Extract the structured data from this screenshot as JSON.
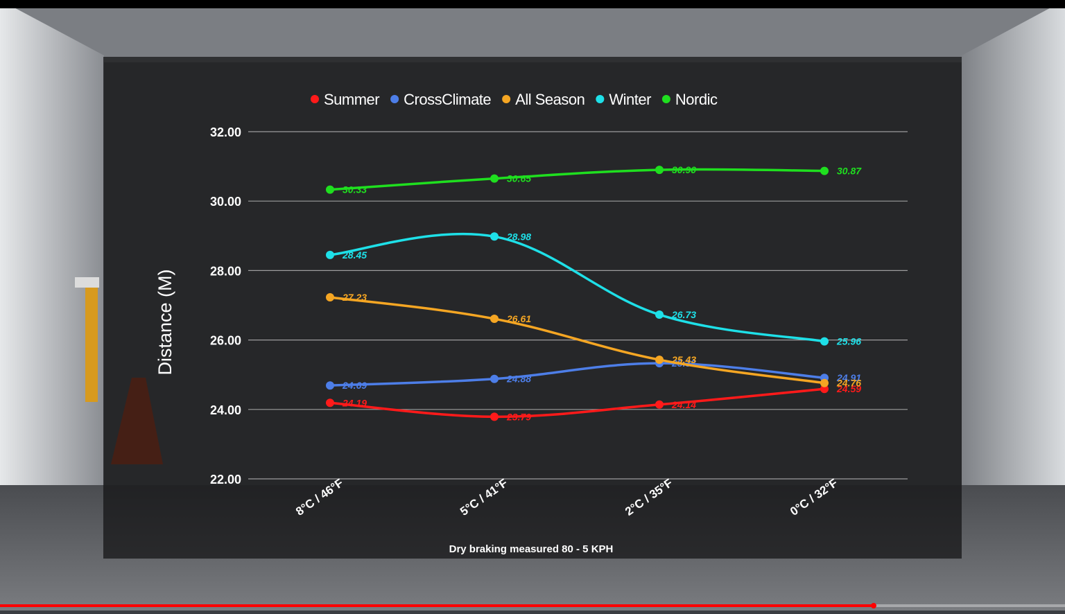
{
  "player": {
    "progress": 0.82
  },
  "chart_data": {
    "type": "line",
    "categories": [
      "8°C / 46°F",
      "5°C / 41°F",
      "2°C / 35°F",
      "0°C / 32°F"
    ],
    "series": [
      {
        "name": "Summer",
        "color": "#ff1a1a",
        "values": [
          24.19,
          23.79,
          24.14,
          24.59
        ]
      },
      {
        "name": "CrossClimate",
        "color": "#4d7ee8",
        "values": [
          24.69,
          24.88,
          25.33,
          24.91
        ]
      },
      {
        "name": "All Season",
        "color": "#f5a623",
        "values": [
          27.23,
          26.61,
          25.43,
          24.76
        ]
      },
      {
        "name": "Winter",
        "color": "#1ee0e8",
        "values": [
          28.45,
          28.98,
          26.73,
          25.96
        ]
      },
      {
        "name": "Nordic",
        "color": "#1fdf1f",
        "values": [
          30.33,
          30.65,
          30.9,
          30.87
        ]
      }
    ],
    "yticks": [
      "32.00",
      "30.00",
      "28.00",
      "26.00",
      "24.00",
      "22.00"
    ],
    "ylim": [
      22,
      32
    ],
    "ylabel": "Distance (M)",
    "note": "Dry braking measured 80 - 5 KPH",
    "legend_position": "top",
    "grid": true
  }
}
